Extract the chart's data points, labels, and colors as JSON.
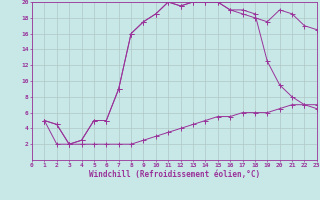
{
  "xlabel": "Windchill (Refroidissement éolien,°C)",
  "background_color": "#c8e8e8",
  "grid_color": "#b0c8c8",
  "line_color": "#993399",
  "line1_x": [
    1,
    2,
    3,
    4,
    5,
    6,
    7,
    8,
    9,
    10,
    11,
    12,
    13,
    14,
    15,
    16,
    17,
    18,
    19,
    20,
    21,
    22,
    23
  ],
  "line1_y": [
    5,
    4.5,
    2,
    2.5,
    5,
    5,
    9,
    16,
    17.5,
    18.5,
    20,
    19.5,
    20,
    20,
    20,
    19,
    18.5,
    18,
    17.5,
    19,
    18.5,
    17,
    16.5
  ],
  "line2_x": [
    1,
    2,
    3,
    4,
    5,
    6,
    7,
    8,
    9,
    10,
    11,
    12,
    13,
    14,
    15,
    16,
    17,
    18,
    19,
    20,
    21,
    22,
    23
  ],
  "line2_y": [
    5,
    4.5,
    2,
    2.5,
    5,
    5,
    9,
    16,
    17.5,
    18.5,
    20,
    19.5,
    20,
    20,
    20,
    19,
    19,
    18.5,
    12.5,
    9.5,
    8,
    7,
    6.5
  ],
  "line3_x": [
    1,
    2,
    3,
    4,
    5,
    6,
    7,
    8,
    9,
    10,
    11,
    12,
    13,
    14,
    15,
    16,
    17,
    18,
    19,
    20,
    21,
    22,
    23
  ],
  "line3_y": [
    5,
    2,
    2,
    2,
    2,
    2,
    2,
    2,
    2.5,
    3,
    3.5,
    4,
    4.5,
    5,
    5.5,
    5.5,
    6,
    6,
    6,
    6.5,
    7,
    7,
    7
  ],
  "xlim": [
    0,
    23
  ],
  "ylim": [
    0,
    20
  ],
  "xticks": [
    0,
    1,
    2,
    3,
    4,
    5,
    6,
    7,
    8,
    9,
    10,
    11,
    12,
    13,
    14,
    15,
    16,
    17,
    18,
    19,
    20,
    21,
    22,
    23
  ],
  "yticks": [
    2,
    4,
    6,
    8,
    10,
    12,
    14,
    16,
    18,
    20
  ],
  "tick_fontsize": 4.5,
  "xlabel_fontsize": 5.5,
  "marker_size": 1.8,
  "line_width": 0.7
}
